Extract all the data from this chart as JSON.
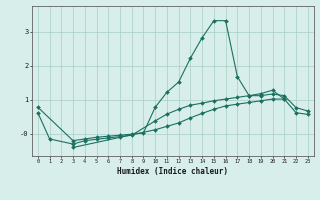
{
  "line_spike": {
    "x": [
      0,
      3,
      4,
      5,
      6,
      7,
      8,
      9,
      10,
      11,
      12,
      13,
      14,
      15,
      16,
      17,
      18,
      19,
      20,
      21
    ],
    "y": [
      0.78,
      -0.2,
      -0.15,
      -0.1,
      -0.07,
      -0.04,
      -0.01,
      0.03,
      0.78,
      1.22,
      1.52,
      2.22,
      2.82,
      3.32,
      3.32,
      1.68,
      1.12,
      1.18,
      1.28,
      1.02
    ]
  },
  "line_mid": {
    "x": [
      0,
      1,
      3,
      4,
      5,
      6,
      7,
      8,
      10,
      11,
      12,
      13,
      14,
      15,
      16,
      17,
      18,
      19,
      20,
      21,
      22,
      23
    ],
    "y": [
      0.62,
      -0.15,
      -0.3,
      -0.2,
      -0.16,
      -0.12,
      -0.08,
      -0.04,
      0.38,
      0.58,
      0.72,
      0.84,
      0.9,
      0.97,
      1.02,
      1.07,
      1.12,
      1.12,
      1.17,
      1.12,
      0.77,
      0.67
    ]
  },
  "line_low": {
    "x": [
      3,
      10,
      11,
      12,
      13,
      14,
      15,
      16,
      17,
      18,
      19,
      20,
      21,
      22,
      23
    ],
    "y": [
      -0.4,
      0.12,
      0.22,
      0.32,
      0.47,
      0.6,
      0.72,
      0.82,
      0.87,
      0.92,
      0.97,
      1.02,
      1.02,
      0.62,
      0.57
    ]
  },
  "line_color": "#1a7060",
  "bg_color": "#d8eeea",
  "grid_color": "#a8ccc6",
  "xlabel": "Humidex (Indice chaleur)",
  "xlim": [
    -0.5,
    23.5
  ],
  "ylim": [
    -0.65,
    3.75
  ]
}
